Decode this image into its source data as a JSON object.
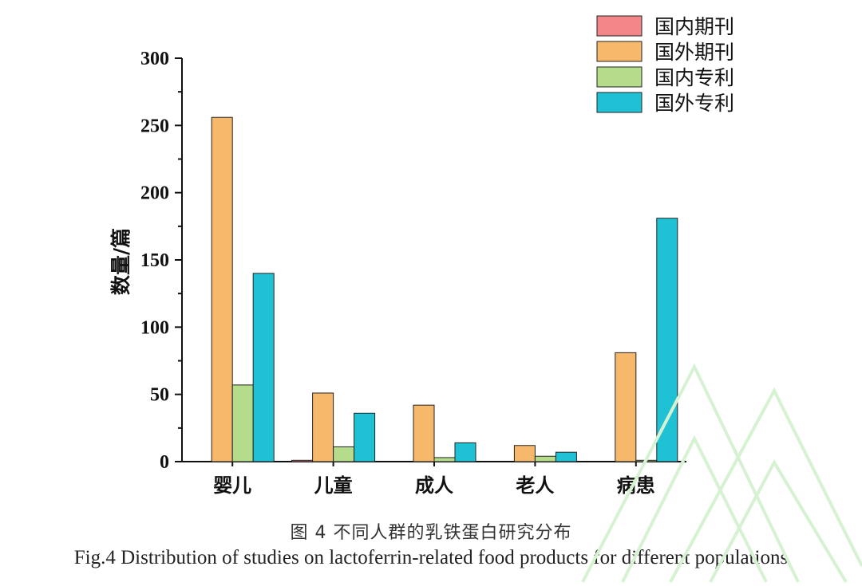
{
  "chart_data": {
    "type": "bar",
    "categories": [
      "婴儿",
      "儿童",
      "成人",
      "老人",
      "病患"
    ],
    "series": [
      {
        "name": "国内期刊",
        "color": "#f4868a",
        "values": [
          0,
          1,
          0,
          0,
          0
        ]
      },
      {
        "name": "国外期刊",
        "color": "#f6b96b",
        "values": [
          256,
          51,
          42,
          12,
          81
        ]
      },
      {
        "name": "国内专利",
        "color": "#b5dc8a",
        "values": [
          57,
          11,
          3,
          4,
          1
        ]
      },
      {
        "name": "国外专利",
        "color": "#1fc1d5",
        "values": [
          140,
          36,
          14,
          7,
          181
        ]
      }
    ],
    "ylabel": "数量/篇",
    "xlabel": "",
    "ylim": [
      0,
      300
    ],
    "yticks": [
      0,
      50,
      100,
      150,
      200,
      250,
      300
    ],
    "legend_position": "top-right",
    "grid": false
  },
  "caption": {
    "cn": "图 4  不同人群的乳铁蛋白研究分布",
    "en": "Fig.4 Distribution of studies on lactoferrin-related food products for different populations"
  }
}
